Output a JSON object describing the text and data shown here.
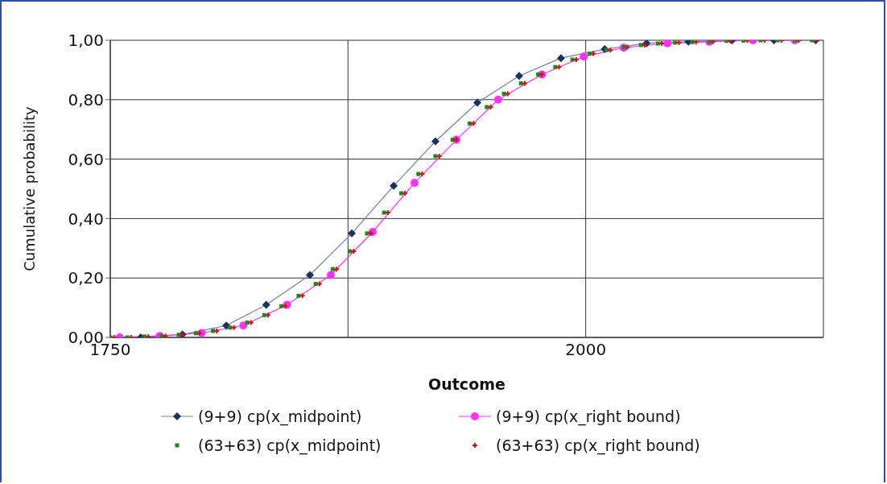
{
  "chart_data": {
    "type": "line",
    "xlabel": "Outcome",
    "ylabel": "Cumulative probability",
    "xlim": [
      1750,
      2125
    ],
    "xticks": [
      1750,
      {
        "value": 1875,
        "label": null
      },
      2000,
      {
        "value": 2125,
        "label": null
      }
    ],
    "ylim": [
      0,
      1
    ],
    "yticks": [
      {
        "value": 0,
        "label": "0,00"
      },
      {
        "value": 0.2,
        "label": "0,20"
      },
      {
        "value": 0.4,
        "label": "0,40"
      },
      {
        "value": 0.6,
        "label": "0,60"
      },
      {
        "value": 0.8,
        "label": "0,80"
      },
      {
        "value": 1,
        "label": "1,00"
      }
    ],
    "grid": true,
    "legend": "bottom",
    "series": [
      {
        "name": "(9+9) cp(x_midpoint)",
        "marker": "diamond",
        "color": "#17325e",
        "x": [
          1755,
          1766,
          1788,
          1811,
          1832,
          1855,
          1877,
          1899,
          1921,
          1943,
          1965,
          1987,
          2010,
          2032,
          2054,
          2077,
          2099,
          2121
        ],
        "values": [
          0,
          0,
          0.01,
          0.04,
          0.11,
          0.21,
          0.35,
          0.51,
          0.66,
          0.79,
          0.88,
          0.94,
          0.97,
          0.99,
          0.995,
          1,
          1,
          1
        ]
      },
      {
        "name": "(9+9) cp(x_right bound)",
        "marker": "circle",
        "color": "#ff33ff",
        "x": [
          1755,
          1776,
          1798,
          1820,
          1843,
          1866,
          1888,
          1910,
          1932,
          1954,
          1977,
          1999,
          2020,
          2043,
          2065,
          2088,
          2110
        ],
        "values": [
          0,
          0.005,
          0.015,
          0.04,
          0.11,
          0.21,
          0.355,
          0.52,
          0.665,
          0.8,
          0.885,
          0.945,
          0.975,
          0.99,
          0.995,
          1,
          1
        ]
      },
      {
        "name": "(63+63) cp(x_midpoint)",
        "type": "scatter",
        "marker": "square",
        "color": "#1a8a1a",
        "x": [
          1750,
          1759,
          1768,
          1777,
          1786,
          1795,
          1804,
          1813,
          1822,
          1831,
          1840,
          1849,
          1858,
          1867,
          1876,
          1885,
          1894,
          1903,
          1912,
          1921,
          1930,
          1939,
          1948,
          1957,
          1966,
          1975,
          1984,
          1993,
          2002,
          2011,
          2020,
          2029,
          2038,
          2047,
          2056,
          2065,
          2074,
          2083,
          2092,
          2101,
          2110,
          2119
        ],
        "values": [
          0,
          0,
          0.003,
          0.005,
          0.009,
          0.014,
          0.022,
          0.033,
          0.05,
          0.075,
          0.105,
          0.14,
          0.18,
          0.23,
          0.29,
          0.35,
          0.42,
          0.485,
          0.55,
          0.61,
          0.665,
          0.72,
          0.775,
          0.82,
          0.855,
          0.885,
          0.91,
          0.935,
          0.955,
          0.967,
          0.977,
          0.984,
          0.989,
          0.992,
          0.994,
          0.996,
          0.998,
          0.999,
          1,
          1,
          1,
          1
        ]
      },
      {
        "name": "(63+63) cp(x_right bound)",
        "type": "scatter",
        "marker": "cross",
        "color": "#cc1111",
        "x": [
          1752,
          1761,
          1770,
          1779,
          1788,
          1797,
          1806,
          1815,
          1824,
          1833,
          1842,
          1851,
          1860,
          1869,
          1878,
          1887,
          1896,
          1905,
          1914,
          1923,
          1932,
          1941,
          1950,
          1959,
          1968,
          1977,
          1986,
          1995,
          2004,
          2013,
          2022,
          2031,
          2040,
          2049,
          2058,
          2067,
          2076,
          2085,
          2094,
          2103,
          2112,
          2121
        ],
        "values": [
          0,
          0,
          0.003,
          0.005,
          0.009,
          0.014,
          0.022,
          0.033,
          0.05,
          0.075,
          0.105,
          0.14,
          0.18,
          0.23,
          0.29,
          0.35,
          0.42,
          0.485,
          0.55,
          0.61,
          0.665,
          0.72,
          0.775,
          0.82,
          0.855,
          0.885,
          0.91,
          0.935,
          0.955,
          0.967,
          0.977,
          0.984,
          0.989,
          0.992,
          0.994,
          0.996,
          0.998,
          0.999,
          1,
          1,
          1,
          1
        ]
      }
    ]
  }
}
